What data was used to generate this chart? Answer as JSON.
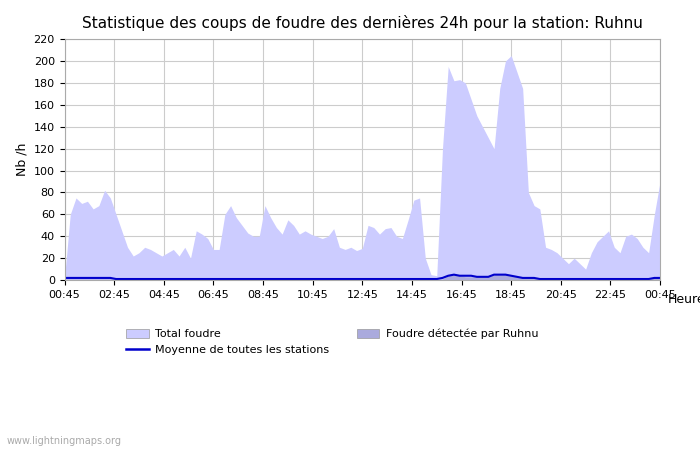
{
  "title": "Statistique des coups de foudre des dernières 24h pour la station: Ruhnu",
  "xlabel": "Heure",
  "ylabel": "Nb /h",
  "ylim": [
    0,
    220
  ],
  "yticks": [
    0,
    20,
    40,
    60,
    80,
    100,
    120,
    140,
    160,
    180,
    200,
    220
  ],
  "xtick_labels": [
    "00:45",
    "02:45",
    "04:45",
    "06:45",
    "08:45",
    "10:45",
    "12:45",
    "14:45",
    "16:45",
    "18:45",
    "20:45",
    "22:45",
    "00:45"
  ],
  "background_color": "#ffffff",
  "plot_bg_color": "#ffffff",
  "grid_color": "#cccccc",
  "title_fontsize": 11,
  "total_foudre_color": "#ccccff",
  "detected_color": "#aaaadd",
  "moyenne_color": "#0000cc",
  "watermark": "www.lightningmaps.org",
  "total_foudre_values": [
    2,
    60,
    75,
    70,
    72,
    65,
    68,
    82,
    75,
    60,
    45,
    30,
    22,
    25,
    30,
    28,
    25,
    22,
    25,
    28,
    22,
    30,
    20,
    45,
    42,
    38,
    28,
    28,
    60,
    68,
    57,
    50,
    43,
    40,
    40,
    68,
    57,
    48,
    42,
    55,
    50,
    42,
    45,
    42,
    40,
    38,
    40,
    47,
    30,
    28,
    30,
    27,
    29,
    50,
    48,
    42,
    47,
    48,
    40,
    38,
    55,
    73,
    75,
    20,
    5,
    4,
    120,
    195,
    182,
    183,
    180,
    165,
    150,
    140,
    130,
    120,
    175,
    200,
    205,
    190,
    175,
    80,
    68,
    65,
    30,
    28,
    25,
    20,
    15,
    20,
    15,
    10,
    25,
    35,
    40,
    45,
    30,
    25,
    40,
    42,
    38,
    30,
    25,
    60,
    90
  ],
  "detected_values": [
    1,
    1,
    1,
    1,
    1,
    1,
    1,
    1,
    1,
    1,
    1,
    1,
    1,
    1,
    1,
    1,
    1,
    1,
    1,
    1,
    1,
    1,
    1,
    1,
    1,
    1,
    1,
    1,
    1,
    1,
    1,
    1,
    1,
    1,
    1,
    1,
    1,
    1,
    1,
    1,
    1,
    1,
    1,
    1,
    1,
    1,
    1,
    1,
    1,
    1,
    1,
    1,
    1,
    1,
    1,
    1,
    1,
    1,
    1,
    1,
    1,
    1,
    1,
    1,
    1,
    1,
    1,
    4,
    5,
    4,
    3,
    3,
    3,
    3,
    3,
    5,
    5,
    5,
    4,
    3,
    2,
    2,
    2,
    1,
    1,
    1,
    1,
    1,
    1,
    1,
    1,
    1,
    1,
    1,
    1,
    1,
    1,
    1,
    1,
    1,
    1,
    1,
    1,
    2,
    2
  ],
  "moyenne_values": [
    2,
    2,
    2,
    2,
    2,
    2,
    2,
    2,
    2,
    1,
    1,
    1,
    1,
    1,
    1,
    1,
    1,
    1,
    1,
    1,
    1,
    1,
    1,
    1,
    1,
    1,
    1,
    1,
    1,
    1,
    1,
    1,
    1,
    1,
    1,
    1,
    1,
    1,
    1,
    1,
    1,
    1,
    1,
    1,
    1,
    1,
    1,
    1,
    1,
    1,
    1,
    1,
    1,
    1,
    1,
    1,
    1,
    1,
    1,
    1,
    1,
    1,
    1,
    1,
    1,
    1,
    2,
    4,
    5,
    4,
    4,
    4,
    3,
    3,
    3,
    5,
    5,
    5,
    4,
    3,
    2,
    2,
    2,
    1,
    1,
    1,
    1,
    1,
    1,
    1,
    1,
    1,
    1,
    1,
    1,
    1,
    1,
    1,
    1,
    1,
    1,
    1,
    1,
    2,
    2
  ]
}
